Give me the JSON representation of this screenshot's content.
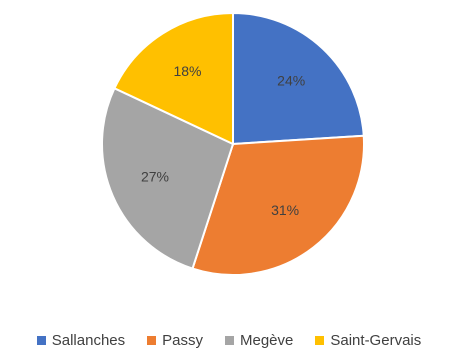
{
  "chart_data": {
    "type": "pie",
    "categories": [
      "Sallanches",
      "Passy",
      "Megève",
      "Saint-Gervais"
    ],
    "values": [
      24,
      31,
      27,
      18
    ],
    "labels": [
      "24%",
      "31%",
      "27%",
      "18%"
    ],
    "colors": [
      "#4472c4",
      "#ed7d31",
      "#a5a5a5",
      "#ffc000"
    ],
    "start_angle_deg": 0,
    "direction": "clockwise",
    "legend_position": "bottom"
  }
}
